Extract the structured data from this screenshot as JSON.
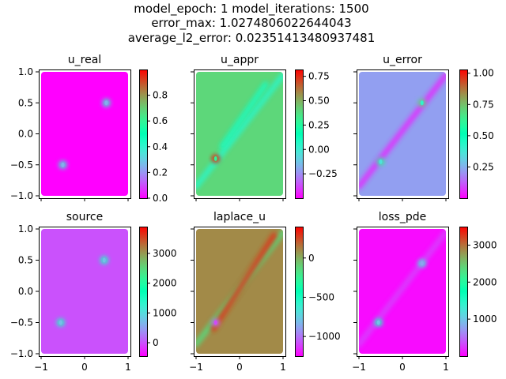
{
  "figure": {
    "title_lines": [
      "model_epoch: 1 model_iterations: 1500",
      "error_max: 1.0274806022644043",
      "average_l2_error: 0.02351413480937481"
    ]
  },
  "colormap": "rainbow",
  "chart_data": [
    {
      "type": "heatmap",
      "title": "u_real",
      "xlim": [
        -1,
        1
      ],
      "ylim": [
        -1,
        1
      ],
      "x_ticks": [],
      "x_tick_labels": [],
      "y_ticks": [
        1.0,
        0.5,
        0.0,
        -0.5,
        -1.0
      ],
      "y_tick_labels": [
        "1.0",
        "0.5",
        "0.0",
        "−0.5",
        "−1.0"
      ],
      "colorbar": {
        "min": 0.0,
        "max": 1.0,
        "ticks": [
          0.0,
          0.2,
          0.4,
          0.6,
          0.8
        ],
        "tick_labels": [
          "0.0",
          "0.2",
          "0.4",
          "0.6",
          "0.8"
        ]
      },
      "background_value": 0.0,
      "features": [
        {
          "kind": "spot",
          "x": 0.5,
          "y": 0.5,
          "value": 0.4
        },
        {
          "kind": "spot",
          "x": -0.5,
          "y": -0.5,
          "value": 0.4
        }
      ]
    },
    {
      "type": "heatmap",
      "title": "u_appr",
      "xlim": [
        -1,
        1
      ],
      "ylim": [
        -1,
        1
      ],
      "x_ticks": [],
      "x_tick_labels": [],
      "y_ticks": [],
      "y_tick_labels": [],
      "colorbar": {
        "min": -0.5,
        "max": 0.82,
        "ticks": [
          -0.25,
          0.0,
          0.25,
          0.5,
          0.75
        ],
        "tick_labels": [
          "−0.25",
          "0.00",
          "0.25",
          "0.50",
          "0.75"
        ]
      },
      "background_value": 0.4,
      "features": [
        {
          "kind": "band",
          "x1": -1.0,
          "y1": -0.85,
          "x2": 1.0,
          "y2": 0.95,
          "value": 0.05
        },
        {
          "kind": "band",
          "x1": -0.4,
          "y1": -0.2,
          "x2": 0.6,
          "y2": 0.8,
          "value": 0.1
        },
        {
          "kind": "spot",
          "x": -0.55,
          "y": -0.4,
          "value": 0.8
        }
      ]
    },
    {
      "type": "heatmap",
      "title": "u_error",
      "xlim": [
        -1,
        1
      ],
      "ylim": [
        -1,
        1
      ],
      "x_ticks": [],
      "x_tick_labels": [],
      "y_ticks": [],
      "y_tick_labels": [],
      "colorbar": {
        "min": 0.0,
        "max": 1.03,
        "ticks": [
          0.25,
          0.5,
          0.75,
          1.0
        ],
        "tick_labels": [
          "0.25",
          "0.50",
          "0.75",
          "1.00"
        ]
      },
      "background_value": 0.22,
      "features": [
        {
          "kind": "band",
          "x1": -1.0,
          "y1": -0.85,
          "x2": 1.0,
          "y2": 0.95,
          "value": 0.05
        },
        {
          "kind": "spot",
          "x": 0.45,
          "y": 0.5,
          "value": 0.7
        },
        {
          "kind": "spot",
          "x": -0.5,
          "y": -0.45,
          "value": 0.6
        }
      ]
    },
    {
      "type": "heatmap",
      "title": "source",
      "xlim": [
        -1,
        1
      ],
      "ylim": [
        -1,
        1
      ],
      "x_ticks": [
        -1,
        0,
        1
      ],
      "x_tick_labels": [
        "−1",
        "0",
        "1"
      ],
      "y_ticks": [
        1.0,
        0.5,
        0.0,
        -0.5,
        -1.0
      ],
      "y_tick_labels": [
        "1.0",
        "0.5",
        "0.0",
        "−0.5",
        "−1.0"
      ],
      "colorbar": {
        "min": -450,
        "max": 3900,
        "ticks": [
          0,
          1000,
          2000,
          3000
        ],
        "tick_labels": [
          "0",
          "1000",
          "2000",
          "3000"
        ]
      },
      "background_value": 0.0,
      "features": [
        {
          "kind": "spot",
          "x": 0.45,
          "y": 0.5,
          "value": 1500
        },
        {
          "kind": "spot",
          "x": -0.55,
          "y": -0.5,
          "value": 1500
        }
      ]
    },
    {
      "type": "heatmap",
      "title": "laplace_u",
      "xlim": [
        -1,
        1
      ],
      "ylim": [
        -1,
        1
      ],
      "x_ticks": [
        -1,
        0,
        1
      ],
      "x_tick_labels": [
        "−1",
        "0",
        "1"
      ],
      "y_ticks": [],
      "y_tick_labels": [],
      "colorbar": {
        "min": -1250,
        "max": 400,
        "ticks": [
          0,
          -500,
          -1000
        ],
        "tick_labels": [
          "0",
          "−500",
          "−1000"
        ]
      },
      "background_value": 100,
      "features": [
        {
          "kind": "band",
          "x1": -1.0,
          "y1": -0.85,
          "x2": 1.0,
          "y2": 0.95,
          "value": -150
        },
        {
          "kind": "band",
          "x1": -0.6,
          "y1": -0.6,
          "x2": 0.8,
          "y2": 0.9,
          "value": 300
        },
        {
          "kind": "spot",
          "x": -0.55,
          "y": -0.5,
          "value": -1000
        }
      ]
    },
    {
      "type": "heatmap",
      "title": "loss_pde",
      "xlim": [
        -1,
        1
      ],
      "ylim": [
        -1,
        1
      ],
      "x_ticks": [
        -1,
        0,
        1
      ],
      "x_tick_labels": [
        "−1",
        "0",
        "1"
      ],
      "y_ticks": [],
      "y_tick_labels": [],
      "colorbar": {
        "min": 0,
        "max": 3500,
        "ticks": [
          1000,
          2000,
          3000
        ],
        "tick_labels": [
          "1000",
          "2000",
          "3000"
        ]
      },
      "background_value": 50,
      "features": [
        {
          "kind": "band",
          "x1": -1.0,
          "y1": -0.85,
          "x2": 1.0,
          "y2": 0.95,
          "value": 300
        },
        {
          "kind": "spot",
          "x": 0.45,
          "y": 0.45,
          "value": 1300
        },
        {
          "kind": "spot",
          "x": -0.55,
          "y": -0.5,
          "value": 1600
        }
      ]
    }
  ]
}
